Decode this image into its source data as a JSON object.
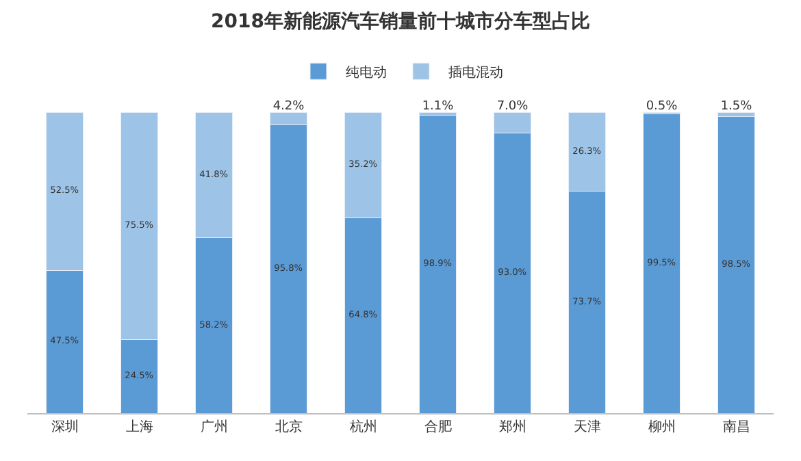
{
  "chart_data": {
    "type": "bar",
    "title": "2018年新能源汽车销量前十城市分车型占比",
    "categories": [
      "深圳",
      "上海",
      "广州",
      "北京",
      "杭州",
      "合肥",
      "郑州",
      "天津",
      "柳州",
      "南昌"
    ],
    "stacked": true,
    "legend": "top",
    "series": [
      {
        "name": "纯电动",
        "color": "#5b9bd5",
        "values": [
          47.5,
          24.5,
          58.2,
          95.8,
          64.8,
          98.9,
          93.0,
          73.7,
          99.5,
          98.5
        ],
        "value_labels": [
          "47.5%",
          "24.5%",
          "58.2%",
          "95.8%",
          "64.8%",
          "98.9%",
          "93.0%",
          "73.7%",
          "99.5%",
          "98.5%"
        ]
      },
      {
        "name": "插电混动",
        "color": "#9dc3e6",
        "values": [
          52.5,
          75.5,
          41.8,
          4.2,
          35.2,
          1.1,
          7.0,
          26.3,
          0.5,
          1.5
        ],
        "value_labels": [
          "52.5%",
          "75.5%",
          "41.8%",
          "4.2%",
          "35.2%",
          "1.1%",
          "7.0%",
          "26.3%",
          "0.5%",
          "1.5%"
        ]
      }
    ]
  }
}
